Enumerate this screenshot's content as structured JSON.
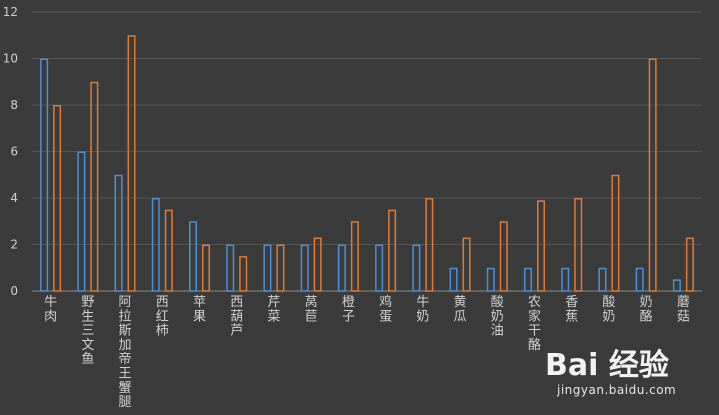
{
  "chart_data": {
    "type": "bar",
    "categories": [
      "牛肉",
      "野生三文鱼",
      "阿拉斯加帝王蟹腿",
      "西红柿",
      "苹果",
      "西葫芦",
      "芹菜",
      "莴苣",
      "橙子",
      "鸡蛋",
      "牛奶",
      "黄瓜",
      "酸奶油",
      "农家干酪",
      "香蕉",
      "酸奶",
      "奶酪",
      "蘑菇"
    ],
    "series": [
      {
        "color": "#4a8fd8",
        "values": [
          10,
          6,
          5,
          4,
          3,
          2,
          2,
          2,
          2,
          2,
          2,
          1,
          1,
          1,
          1,
          1,
          1,
          0.5
        ]
      },
      {
        "color": "#e07a32",
        "values": [
          8,
          9,
          11,
          3.5,
          2,
          1.5,
          2,
          2.3,
          3,
          3.5,
          4,
          2.3,
          3,
          3.9,
          4,
          5,
          10,
          2.3
        ]
      }
    ],
    "ylim": [
      0,
      12
    ],
    "yticks": [
      0,
      2,
      4,
      6,
      8,
      10,
      12
    ],
    "grid": true,
    "legend": "none",
    "title": "",
    "xlabel": "",
    "ylabel": ""
  },
  "watermark": {
    "brand": "Bai 经验",
    "url": "jingyan.baidu.com"
  }
}
